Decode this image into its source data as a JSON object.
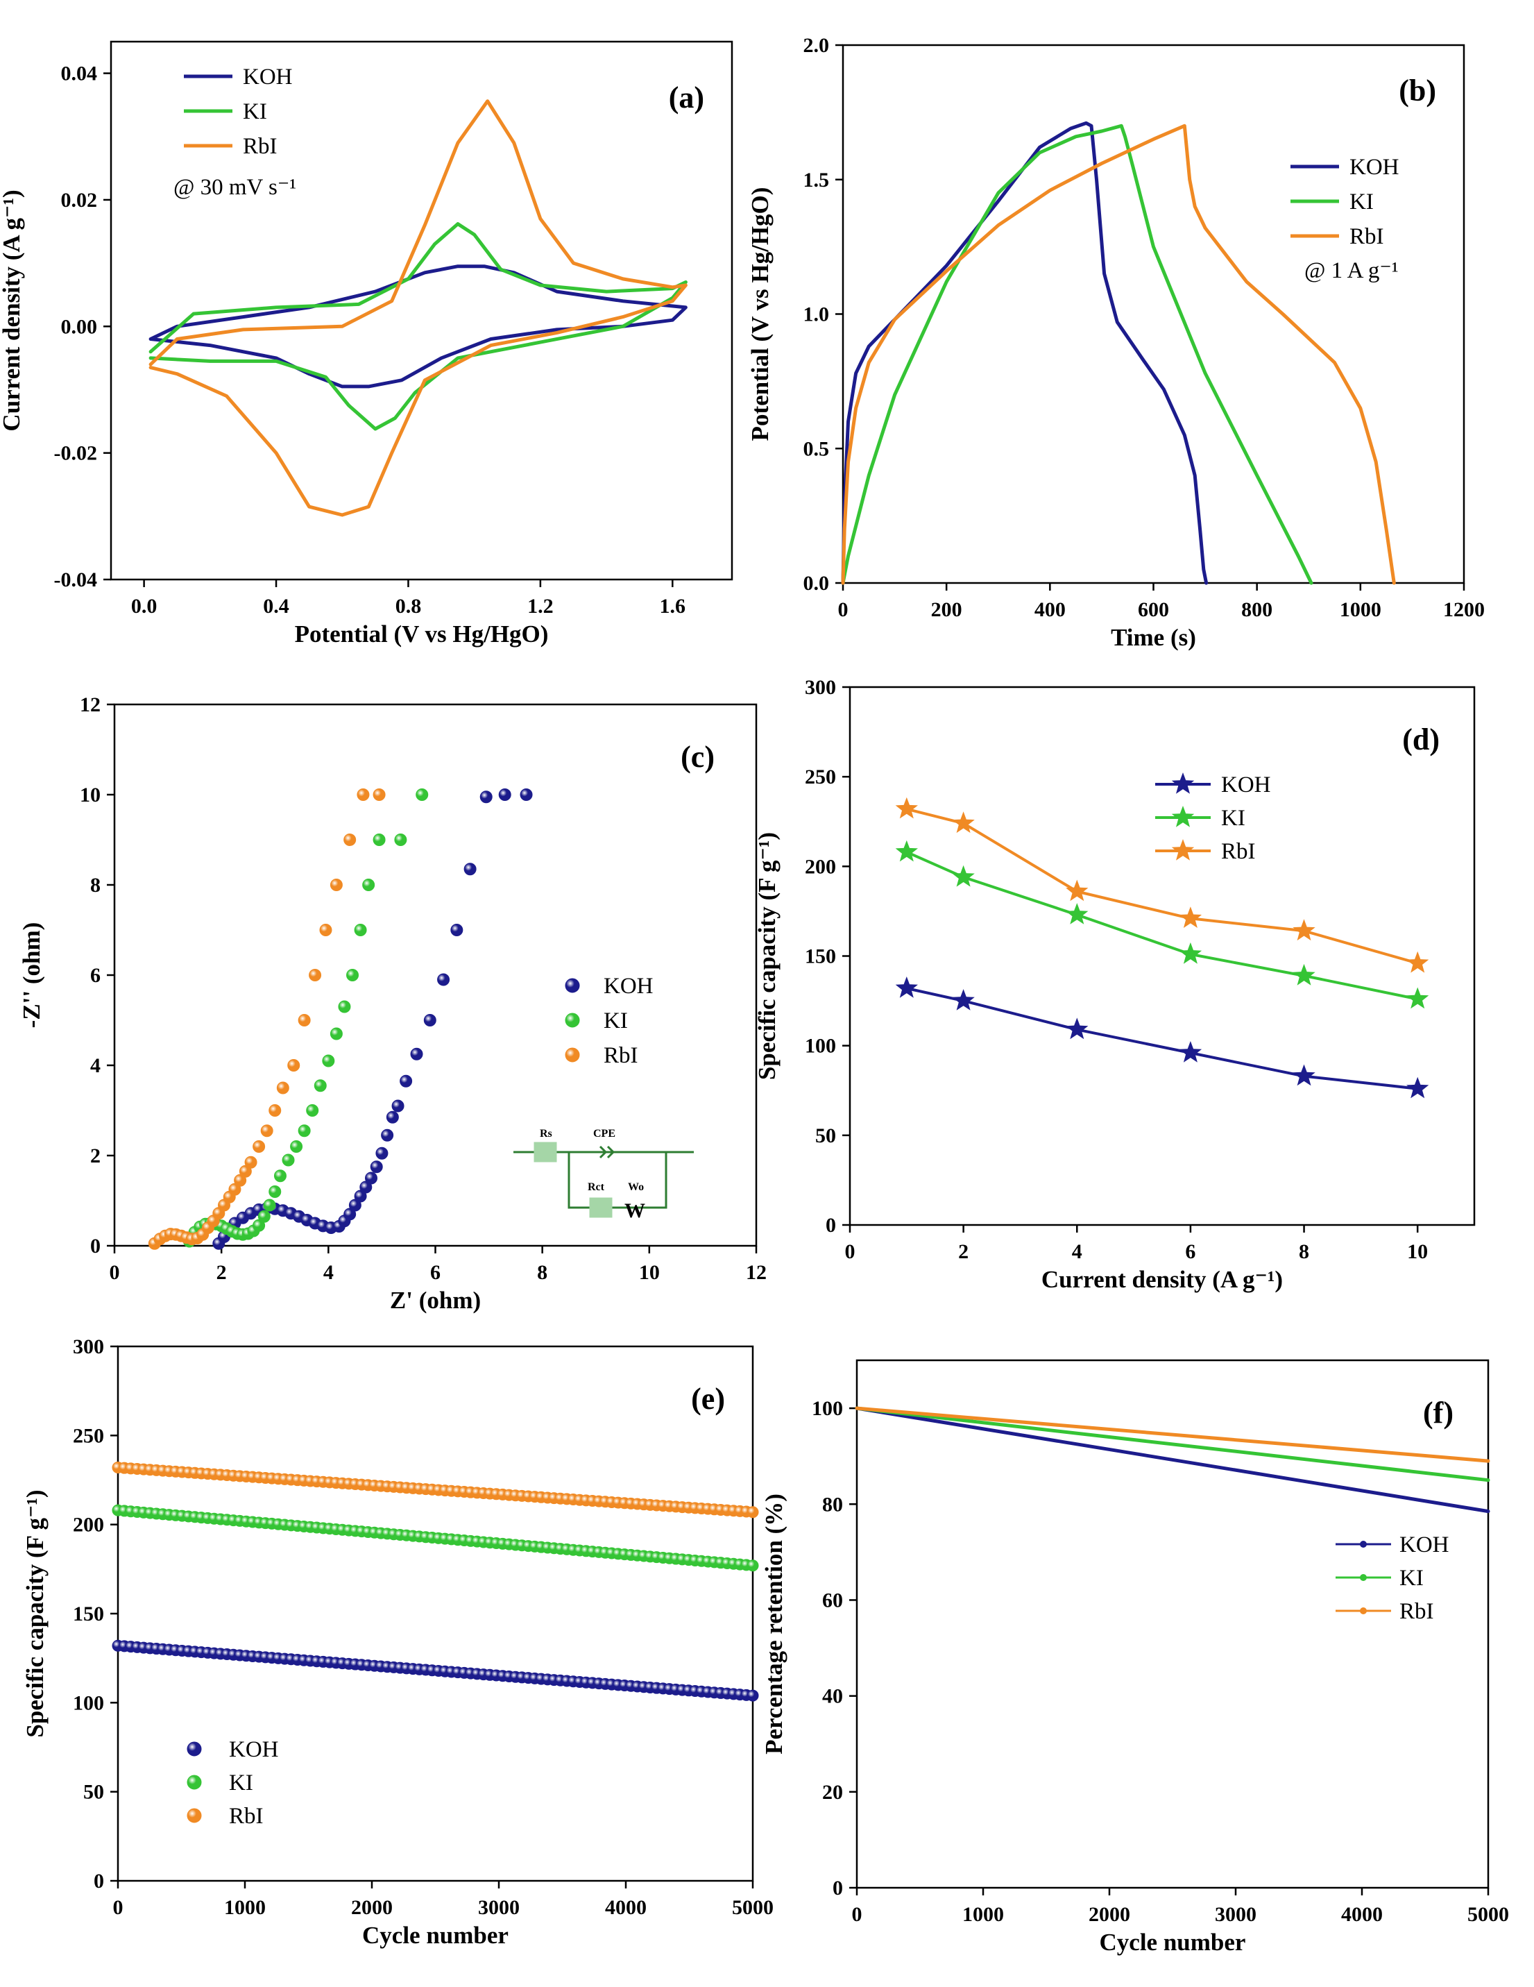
{
  "figure": {
    "colors": {
      "KOH": "#1c1c8c",
      "KI": "#35c435",
      "RbI": "#f08a24",
      "annotation": "#2b2bb0",
      "circuit": "#2e7d32",
      "circuit_fill": "#a5d6a7"
    }
  },
  "chart_data": [
    {
      "id": "a",
      "panel_label": "(a)",
      "type": "line",
      "title": "",
      "xlabel": "Potential (V vs Hg/HgO)",
      "ylabel": "Current density (A g⁻¹)",
      "xlim": [
        -0.1,
        1.78
      ],
      "ylim": [
        -0.04,
        0.045
      ],
      "xticks": [
        0.0,
        0.4,
        0.8,
        1.2,
        1.6
      ],
      "xtick_labels": [
        "0.0",
        "0.4",
        "0.8",
        "1.2",
        "1.6"
      ],
      "yticks": [
        -0.04,
        -0.02,
        0.0,
        0.02,
        0.04
      ],
      "ytick_labels": [
        "-0.04",
        "-0.02",
        "0.00",
        "0.02",
        "0.04"
      ],
      "annotation": "@ 30 mV s⁻¹",
      "legend": [
        "KOH",
        "KI",
        "RbI"
      ],
      "series": [
        {
          "name": "KOH",
          "x": [
            0.02,
            0.1,
            0.3,
            0.5,
            0.7,
            0.85,
            0.95,
            1.03,
            1.12,
            1.25,
            1.45,
            1.64,
            1.6,
            1.45,
            1.25,
            1.05,
            0.9,
            0.78,
            0.68,
            0.6,
            0.5,
            0.4,
            0.2,
            0.02
          ],
          "y": [
            -0.002,
            0.0,
            0.0015,
            0.003,
            0.0055,
            0.0085,
            0.0095,
            0.0095,
            0.0085,
            0.0055,
            0.004,
            0.003,
            0.001,
            0.0,
            -0.0005,
            -0.002,
            -0.005,
            -0.0085,
            -0.0095,
            -0.0095,
            -0.0075,
            -0.005,
            -0.003,
            -0.002
          ]
        },
        {
          "name": "KI",
          "x": [
            0.02,
            0.15,
            0.4,
            0.65,
            0.8,
            0.88,
            0.95,
            1.0,
            1.08,
            1.2,
            1.4,
            1.6,
            1.64,
            1.6,
            1.45,
            1.2,
            0.95,
            0.82,
            0.76,
            0.7,
            0.62,
            0.55,
            0.4,
            0.2,
            0.02
          ],
          "y": [
            -0.004,
            0.002,
            0.003,
            0.0035,
            0.0075,
            0.013,
            0.0162,
            0.0145,
            0.009,
            0.0065,
            0.0055,
            0.006,
            0.007,
            0.0045,
            0.0,
            -0.0025,
            -0.005,
            -0.0105,
            -0.0145,
            -0.0162,
            -0.0125,
            -0.008,
            -0.0055,
            -0.0055,
            -0.005
          ]
        },
        {
          "name": "RbI",
          "x": [
            0.02,
            0.1,
            0.3,
            0.6,
            0.75,
            0.85,
            0.95,
            1.04,
            1.12,
            1.2,
            1.3,
            1.45,
            1.6,
            1.64,
            1.6,
            1.45,
            1.25,
            1.05,
            0.85,
            0.75,
            0.68,
            0.6,
            0.5,
            0.4,
            0.25,
            0.1,
            0.02
          ],
          "y": [
            -0.006,
            -0.002,
            -0.0005,
            0.0,
            0.004,
            0.016,
            0.029,
            0.0356,
            0.029,
            0.017,
            0.01,
            0.0075,
            0.0062,
            0.0065,
            0.004,
            0.0015,
            -0.001,
            -0.003,
            -0.0085,
            -0.02,
            -0.0285,
            -0.0298,
            -0.0285,
            -0.02,
            -0.011,
            -0.0075,
            -0.0065
          ]
        }
      ]
    },
    {
      "id": "b",
      "panel_label": "(b)",
      "type": "line",
      "title": "",
      "xlabel": "Time (s)",
      "ylabel": "Potential (V vs Hg/HgO)",
      "xlim": [
        0,
        1200
      ],
      "ylim": [
        0,
        2.0
      ],
      "xticks": [
        0,
        200,
        400,
        600,
        800,
        1000,
        1200
      ],
      "xtick_labels": [
        "0",
        "200",
        "400",
        "600",
        "800",
        "1000",
        "1200"
      ],
      "yticks": [
        0.0,
        0.5,
        1.0,
        1.5,
        2.0
      ],
      "ytick_labels": [
        "0.0",
        "0.5",
        "1.0",
        "1.5",
        "2.0"
      ],
      "annotation": "@ 1 A g⁻¹",
      "legend": [
        "KOH",
        "KI",
        "RbI"
      ],
      "series": [
        {
          "name": "KOH",
          "x": [
            0,
            3,
            10,
            25,
            50,
            100,
            200,
            300,
            380,
            440,
            470,
            480,
            490,
            505,
            530,
            580,
            620,
            660,
            680,
            690,
            697,
            702
          ],
          "y": [
            0.0,
            0.3,
            0.6,
            0.78,
            0.88,
            0.98,
            1.18,
            1.42,
            1.62,
            1.69,
            1.71,
            1.7,
            1.5,
            1.15,
            0.97,
            0.83,
            0.72,
            0.55,
            0.4,
            0.2,
            0.05,
            0.0
          ]
        },
        {
          "name": "KI",
          "x": [
            0,
            10,
            50,
            100,
            200,
            300,
            380,
            450,
            500,
            538,
            545,
            560,
            600,
            700,
            800,
            880,
            905
          ],
          "y": [
            0.0,
            0.1,
            0.4,
            0.7,
            1.12,
            1.45,
            1.6,
            1.66,
            1.68,
            1.7,
            1.66,
            1.55,
            1.25,
            0.78,
            0.4,
            0.1,
            0.0
          ]
        },
        {
          "name": "RbI",
          "x": [
            0,
            3,
            10,
            25,
            50,
            100,
            200,
            300,
            400,
            500,
            600,
            660,
            665,
            670,
            680,
            700,
            780,
            850,
            950,
            1000,
            1030,
            1050,
            1065
          ],
          "y": [
            0.0,
            0.2,
            0.45,
            0.65,
            0.82,
            0.98,
            1.16,
            1.33,
            1.46,
            1.56,
            1.65,
            1.7,
            1.6,
            1.5,
            1.4,
            1.32,
            1.12,
            1.0,
            0.82,
            0.65,
            0.45,
            0.2,
            0.0
          ]
        }
      ]
    },
    {
      "id": "c",
      "panel_label": "(c)",
      "type": "scatter",
      "title": "",
      "xlabel": "Z' (ohm)",
      "ylabel": "-Z'' (ohm)",
      "xlim": [
        0,
        12
      ],
      "ylim": [
        0,
        12
      ],
      "xticks": [
        0,
        2,
        4,
        6,
        8,
        10,
        12
      ],
      "xtick_labels": [
        "0",
        "2",
        "4",
        "6",
        "8",
        "10",
        "12"
      ],
      "yticks": [
        0,
        2,
        4,
        6,
        8,
        10,
        12
      ],
      "ytick_labels": [
        "0",
        "2",
        "4",
        "6",
        "8",
        "10",
        "12"
      ],
      "legend": [
        "KOH",
        "KI",
        "RbI"
      ],
      "inset_circuit": {
        "labels": [
          "Rs",
          "CPE",
          "Rct",
          "Wo"
        ],
        "warburg_symbol": "W"
      },
      "series": [
        {
          "name": "KOH",
          "x": [
            1.95,
            2.05,
            2.15,
            2.25,
            2.4,
            2.55,
            2.7,
            2.85,
            3.0,
            3.15,
            3.3,
            3.45,
            3.6,
            3.75,
            3.9,
            4.05,
            4.2,
            4.3,
            4.4,
            4.5,
            4.6,
            4.7,
            4.8,
            4.9,
            5.0,
            5.1,
            5.2,
            5.3,
            5.45,
            5.65,
            5.9,
            6.15,
            6.4,
            6.65,
            6.95,
            7.3,
            7.7
          ],
          "y": [
            0.05,
            0.2,
            0.35,
            0.5,
            0.62,
            0.72,
            0.8,
            0.83,
            0.82,
            0.78,
            0.72,
            0.65,
            0.57,
            0.5,
            0.44,
            0.4,
            0.43,
            0.55,
            0.7,
            0.9,
            1.1,
            1.3,
            1.5,
            1.75,
            2.05,
            2.45,
            2.85,
            3.1,
            3.65,
            4.25,
            5.0,
            5.9,
            7.0,
            8.35,
            9.95,
            10.0,
            10.0
          ]
        },
        {
          "name": "KI",
          "x": [
            1.4,
            1.5,
            1.6,
            1.7,
            1.8,
            1.9,
            2.0,
            2.1,
            2.2,
            2.3,
            2.4,
            2.5,
            2.6,
            2.7,
            2.8,
            2.9,
            3.0,
            3.1,
            3.25,
            3.4,
            3.55,
            3.7,
            3.85,
            4.0,
            4.15,
            4.3,
            4.45,
            4.6,
            4.75,
            4.95,
            5.35,
            5.75
          ],
          "y": [
            0.1,
            0.3,
            0.42,
            0.48,
            0.5,
            0.48,
            0.44,
            0.38,
            0.32,
            0.27,
            0.25,
            0.27,
            0.33,
            0.45,
            0.65,
            0.9,
            1.2,
            1.55,
            1.9,
            2.2,
            2.55,
            3.0,
            3.55,
            4.1,
            4.7,
            5.3,
            6.0,
            7.0,
            8.0,
            9.0,
            9.0,
            10.0
          ]
        },
        {
          "name": "RbI",
          "x": [
            0.75,
            0.85,
            0.95,
            1.05,
            1.15,
            1.25,
            1.35,
            1.45,
            1.55,
            1.65,
            1.75,
            1.85,
            1.95,
            2.05,
            2.15,
            2.25,
            2.35,
            2.45,
            2.55,
            2.7,
            2.85,
            3.0,
            3.15,
            3.35,
            3.55,
            3.75,
            3.95,
            4.15,
            4.4,
            4.65,
            4.95
          ],
          "y": [
            0.05,
            0.15,
            0.22,
            0.26,
            0.25,
            0.22,
            0.18,
            0.15,
            0.17,
            0.25,
            0.4,
            0.55,
            0.72,
            0.9,
            1.08,
            1.25,
            1.45,
            1.65,
            1.85,
            2.2,
            2.55,
            3.0,
            3.5,
            4.0,
            5.0,
            6.0,
            7.0,
            8.0,
            9.0,
            10.0,
            10.0
          ]
        }
      ]
    },
    {
      "id": "d",
      "panel_label": "(d)",
      "type": "line",
      "title": "",
      "xlabel": "Current density (A g⁻¹)",
      "ylabel": "Specific capacity (F g⁻¹)",
      "xlim": [
        0,
        11
      ],
      "ylim": [
        0,
        300
      ],
      "xticks": [
        0,
        2,
        4,
        6,
        8,
        10
      ],
      "xtick_labels": [
        "0",
        "2",
        "4",
        "6",
        "8",
        "10"
      ],
      "yticks": [
        0,
        50,
        100,
        150,
        200,
        250,
        300
      ],
      "ytick_labels": [
        "0",
        "50",
        "100",
        "150",
        "200",
        "250",
        "300"
      ],
      "legend": [
        "KOH",
        "KI",
        "RbI"
      ],
      "x": [
        1,
        2,
        4,
        6,
        8,
        10
      ],
      "series": [
        {
          "name": "KOH",
          "values": [
            132,
            125,
            109,
            96,
            83,
            76
          ]
        },
        {
          "name": "KI",
          "values": [
            208,
            194,
            173,
            151,
            139,
            126
          ]
        },
        {
          "name": "RbI",
          "values": [
            232,
            224,
            186,
            171,
            164,
            146
          ]
        }
      ]
    },
    {
      "id": "e",
      "panel_label": "(e)",
      "type": "scatter",
      "title": "",
      "xlabel": "Cycle number",
      "ylabel": "Specific capacity (F g⁻¹)",
      "xlim": [
        0,
        5000
      ],
      "ylim": [
        0,
        300
      ],
      "xticks": [
        0,
        1000,
        2000,
        3000,
        4000,
        5000
      ],
      "xtick_labels": [
        "0",
        "1000",
        "2000",
        "3000",
        "4000",
        "5000"
      ],
      "yticks": [
        0,
        50,
        100,
        150,
        200,
        250,
        300
      ],
      "ytick_labels": [
        "0",
        "50",
        "100",
        "150",
        "200",
        "250",
        "300"
      ],
      "legend": [
        "KOH",
        "KI",
        "RbI"
      ],
      "point_count": 100,
      "series": [
        {
          "name": "KOH",
          "start": 132,
          "end": 104
        },
        {
          "name": "KI",
          "start": 208,
          "end": 177
        },
        {
          "name": "RbI",
          "start": 232,
          "end": 207
        }
      ]
    },
    {
      "id": "f",
      "panel_label": "(f)",
      "type": "line",
      "title": "",
      "xlabel": "Cycle number",
      "ylabel": "Percentage retention (%)",
      "xlim": [
        0,
        5000
      ],
      "ylim": [
        0,
        110
      ],
      "xticks": [
        0,
        1000,
        2000,
        3000,
        4000,
        5000
      ],
      "xtick_labels": [
        "0",
        "1000",
        "2000",
        "3000",
        "4000",
        "5000"
      ],
      "yticks": [
        0,
        20,
        40,
        60,
        80,
        100
      ],
      "ytick_labels": [
        "0",
        "20",
        "40",
        "60",
        "80",
        "100"
      ],
      "legend": [
        "KOH",
        "KI",
        "RbI"
      ],
      "x": [
        0,
        5000
      ],
      "series": [
        {
          "name": "KOH",
          "values": [
            100,
            78.5
          ]
        },
        {
          "name": "KI",
          "values": [
            100,
            85
          ]
        },
        {
          "name": "RbI",
          "values": [
            100,
            89
          ]
        }
      ]
    }
  ]
}
